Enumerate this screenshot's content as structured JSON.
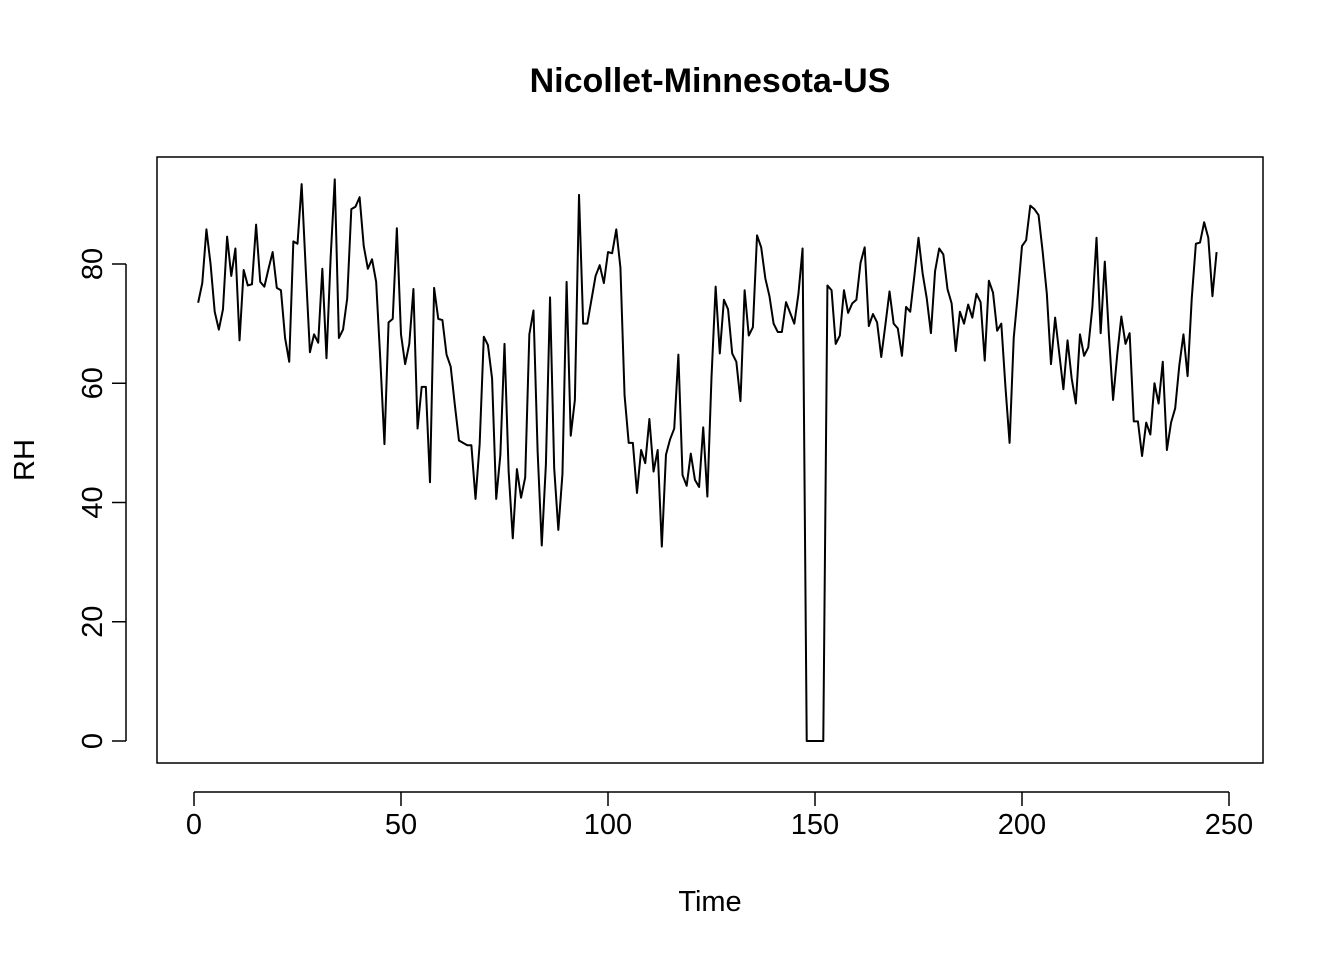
{
  "chart_data": {
    "type": "line",
    "title": "Nicollet-Minnesota-US",
    "xlabel": "Time",
    "ylabel": "RH",
    "xlim": [
      0,
      250
    ],
    "ylim": [
      0,
      95
    ],
    "x_ticks": [
      0,
      50,
      100,
      150,
      200,
      250
    ],
    "y_ticks": [
      0,
      20,
      40,
      60,
      80
    ],
    "x_tick_labels": [
      "0",
      "50",
      "100",
      "150",
      "200",
      "250"
    ],
    "y_tick_labels": [
      "0",
      "20",
      "40",
      "60",
      "80"
    ],
    "grid": false,
    "legend": "none",
    "line_color": "#000000",
    "series": [
      {
        "x_start": 1,
        "values": [
          73.5,
          76.8,
          85.8,
          80.0,
          72.0,
          69.0,
          72.4,
          84.6,
          78.0,
          82.6,
          67.2,
          79.0,
          76.4,
          76.6,
          86.6,
          77.0,
          76.2,
          79.2,
          82.0,
          76.0,
          75.6,
          67.6,
          63.6,
          83.8,
          83.4,
          93.4,
          79.0,
          65.2,
          68.2,
          66.8,
          79.2,
          64.2,
          81.0,
          94.2,
          67.6,
          69.0,
          74.2,
          89.2,
          89.6,
          91.2,
          83.0,
          79.2,
          80.8,
          77.0,
          64.0,
          49.8,
          70.2,
          70.8,
          86.0,
          68.2,
          63.2,
          66.6,
          75.8,
          52.4,
          59.4,
          59.4,
          43.4,
          76.0,
          70.8,
          70.6,
          64.8,
          62.8,
          56.4,
          50.4,
          50.0,
          49.6,
          49.6,
          40.6,
          49.8,
          67.8,
          66.4,
          60.8,
          40.6,
          48.0,
          66.6,
          45.2,
          34.0,
          45.6,
          40.8,
          44.2,
          68.2,
          72.2,
          48.6,
          32.8,
          46.4,
          74.4,
          45.8,
          35.4,
          44.8,
          77.0,
          51.2,
          57.2,
          91.6,
          70.0,
          70.0,
          74.0,
          78.0,
          79.8,
          76.8,
          82.0,
          81.8,
          85.8,
          79.4,
          58.0,
          50.0,
          50.0,
          41.6,
          48.8,
          46.6,
          54.0,
          45.2,
          48.8,
          32.6,
          48.0,
          50.6,
          52.4,
          64.8,
          44.6,
          42.8,
          48.2,
          43.8,
          42.6,
          52.6,
          41.0,
          61.0,
          76.2,
          65.0,
          74.0,
          72.4,
          65.0,
          63.6,
          57.0,
          75.6,
          68.0,
          69.4,
          84.8,
          82.8,
          77.6,
          74.6,
          70.0,
          68.6,
          68.6,
          73.6,
          71.8,
          70.0,
          75.0,
          82.6,
          0.0,
          0.0,
          0.0,
          0.0,
          0.0,
          76.4,
          75.6,
          66.6,
          68.0,
          75.6,
          71.8,
          73.4,
          74.0,
          80.2,
          82.8,
          69.6,
          71.6,
          70.2,
          64.4,
          69.8,
          75.4,
          70.0,
          69.2,
          64.6,
          72.8,
          72.0,
          78.0,
          84.4,
          78.4,
          74.2,
          68.4,
          78.8,
          82.6,
          81.6,
          75.8,
          73.4,
          65.4,
          72.0,
          70.0,
          73.2,
          71.0,
          75.0,
          73.6,
          63.8,
          77.2,
          75.2,
          68.8,
          70.0,
          59.4,
          50.0,
          67.6,
          75.0,
          83.0,
          84.0,
          89.8,
          89.2,
          88.2,
          82.0,
          75.0,
          63.2,
          71.0,
          65.0,
          59.0,
          67.2,
          60.8,
          56.6,
          68.2,
          64.6,
          66.0,
          72.8,
          84.4,
          68.4,
          80.4,
          68.0,
          57.2,
          64.8,
          71.2,
          66.6,
          68.4,
          53.6,
          53.6,
          47.8,
          53.4,
          51.4,
          60.0,
          56.6,
          63.6,
          48.8,
          53.4,
          55.8,
          63.0,
          68.2,
          61.2,
          74.2,
          83.4,
          83.6,
          87.0,
          84.4,
          74.6,
          82.0
        ]
      }
    ]
  }
}
